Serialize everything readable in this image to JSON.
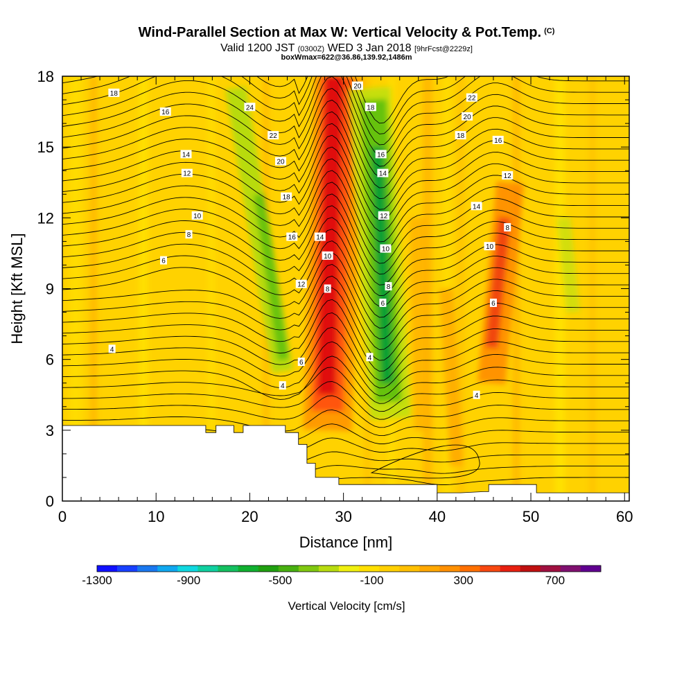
{
  "header": {
    "title": "Wind-Parallel Section at Max W: Vertical Velocity & Pot.Temp.",
    "copyright": "(C)",
    "valid_prefix": "Valid 1200 JST",
    "valid_zulu": "(0300Z)",
    "valid_date": "WED 3 Jan 2018",
    "valid_fcst": "[9hrFcst@2229z]",
    "box_info": "boxWmax=622@36.86,139.92,1486m"
  },
  "chart_data": {
    "type": "heatmap",
    "xlabel": "Distance [nm]",
    "ylabel": "Height [Kft MSL]",
    "xlim": [
      0,
      60.5
    ],
    "ylim": [
      0,
      18
    ],
    "x_ticks": [
      0,
      10,
      20,
      30,
      40,
      50,
      60
    ],
    "y_ticks": [
      0,
      3,
      6,
      9,
      12,
      15,
      18
    ],
    "colorbar": {
      "label": "Vertical Velocity [cm/s]",
      "ticks": [
        -1300,
        -900,
        -500,
        -100,
        300,
        700
      ],
      "colors": [
        "#1010ff",
        "#1840ff",
        "#1a78f0",
        "#10a8f0",
        "#10d8e0",
        "#10d0a0",
        "#14c060",
        "#10b030",
        "#20a010",
        "#48b010",
        "#80c810",
        "#b8dc10",
        "#f0f010",
        "#ffe000",
        "#ffd000",
        "#ffc000",
        "#ffa800",
        "#ff9000",
        "#ff7000",
        "#f84810",
        "#e82010",
        "#c01010",
        "#a01040",
        "#801070",
        "#600090"
      ]
    },
    "velocity_features": [
      {
        "kind": "updraft",
        "x": 28.3,
        "y_bottom": 4,
        "y_top": 18,
        "peak_cm_s": 622
      },
      {
        "kind": "downdraft",
        "x": 34.2,
        "y_bottom": 4,
        "y_top": 16
      },
      {
        "kind": "downdraft",
        "x": 24.5,
        "y_bottom": 6,
        "y_top": 17
      },
      {
        "kind": "updraft",
        "x": 46.0,
        "y_bottom": 6,
        "y_top": 13
      },
      {
        "kind": "downdraft",
        "x": 54.5,
        "y_bottom": 8.5,
        "y_top": 11
      }
    ],
    "terrain": [
      [
        0,
        3.2
      ],
      [
        15.3,
        3.2
      ],
      [
        15.3,
        2.9
      ],
      [
        16.4,
        2.9
      ],
      [
        16.4,
        3.2
      ],
      [
        18.3,
        3.2
      ],
      [
        18.3,
        2.9
      ],
      [
        19.3,
        2.9
      ],
      [
        19.3,
        3.2
      ],
      [
        23.8,
        3.2
      ],
      [
        23.8,
        2.9
      ],
      [
        25.2,
        2.9
      ],
      [
        25.2,
        2.4
      ],
      [
        26.1,
        2.4
      ],
      [
        26.1,
        1.6
      ],
      [
        27.0,
        1.6
      ],
      [
        27.0,
        1.0
      ],
      [
        29.5,
        1.0
      ],
      [
        29.5,
        0.7
      ],
      [
        40.0,
        0.7
      ],
      [
        40.0,
        0.35
      ],
      [
        42.5,
        0.35
      ],
      [
        45.0,
        0.4
      ],
      [
        45.5,
        0.4
      ],
      [
        45.5,
        0.7
      ],
      [
        50.6,
        0.7
      ],
      [
        50.6,
        0.35
      ],
      [
        60.5,
        0.35
      ]
    ],
    "isentropes": {
      "series_labels": [
        {
          "label": "4",
          "x": 5.3,
          "y": 6.45
        },
        {
          "label": "4",
          "x": 23.5,
          "y": 4.9
        },
        {
          "label": "4",
          "x": 32.8,
          "y": 6.1
        },
        {
          "label": "4",
          "x": 44.2,
          "y": 4.5
        },
        {
          "label": "6",
          "x": 10.8,
          "y": 10.2
        },
        {
          "label": "6",
          "x": 25.5,
          "y": 5.9
        },
        {
          "label": "6",
          "x": 34.2,
          "y": 8.4
        },
        {
          "label": "6",
          "x": 46.0,
          "y": 8.4
        },
        {
          "label": "8",
          "x": 13.5,
          "y": 11.3
        },
        {
          "label": "8",
          "x": 28.3,
          "y": 9.0
        },
        {
          "label": "8",
          "x": 34.8,
          "y": 9.1
        },
        {
          "label": "8",
          "x": 47.5,
          "y": 11.6
        },
        {
          "label": "10",
          "x": 14.4,
          "y": 12.1
        },
        {
          "label": "10",
          "x": 28.3,
          "y": 10.4
        },
        {
          "label": "10",
          "x": 34.5,
          "y": 10.7
        },
        {
          "label": "10",
          "x": 45.6,
          "y": 10.8
        },
        {
          "label": "12",
          "x": 13.3,
          "y": 13.9
        },
        {
          "label": "12",
          "x": 25.5,
          "y": 9.2
        },
        {
          "label": "12",
          "x": 34.3,
          "y": 12.1
        },
        {
          "label": "12",
          "x": 47.5,
          "y": 13.8
        },
        {
          "label": "14",
          "x": 13.2,
          "y": 14.7
        },
        {
          "label": "14",
          "x": 27.5,
          "y": 11.2
        },
        {
          "label": "14",
          "x": 34.2,
          "y": 13.9
        },
        {
          "label": "14",
          "x": 44.2,
          "y": 12.5
        },
        {
          "label": "16",
          "x": 11.0,
          "y": 16.5
        },
        {
          "label": "16",
          "x": 24.5,
          "y": 11.2
        },
        {
          "label": "16",
          "x": 34.0,
          "y": 14.7
        },
        {
          "label": "16",
          "x": 46.5,
          "y": 15.3
        },
        {
          "label": "18",
          "x": 5.5,
          "y": 17.3
        },
        {
          "label": "18",
          "x": 23.9,
          "y": 12.9
        },
        {
          "label": "18",
          "x": 32.9,
          "y": 16.7
        },
        {
          "label": "18",
          "x": 42.5,
          "y": 15.5
        },
        {
          "label": "20",
          "x": 23.3,
          "y": 14.4
        },
        {
          "label": "20",
          "x": 31.5,
          "y": 17.6
        },
        {
          "label": "20",
          "x": 43.2,
          "y": 16.3
        },
        {
          "label": "22",
          "x": 22.5,
          "y": 15.5
        },
        {
          "label": "22",
          "x": 43.7,
          "y": 17.1
        },
        {
          "label": "24",
          "x": 20.0,
          "y": 16.7
        }
      ]
    }
  }
}
